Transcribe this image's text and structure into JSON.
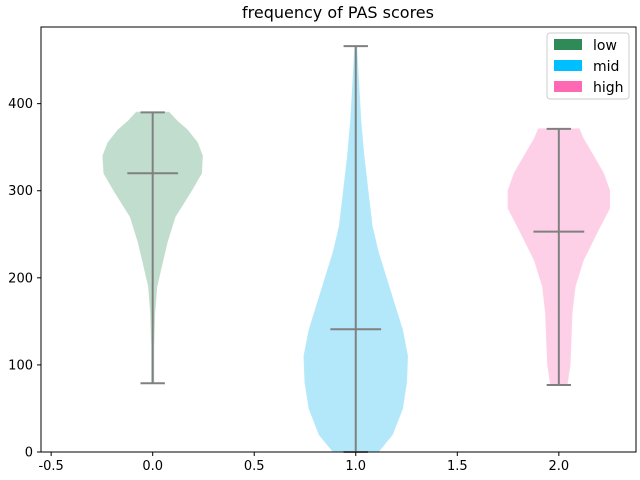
{
  "chart_data": {
    "type": "violin",
    "title": "frequency of PAS scores",
    "xlabel": "",
    "ylabel": "",
    "xlim": [
      -0.55,
      2.38
    ],
    "ylim": [
      0,
      488
    ],
    "x_ticks": [
      -0.5,
      0.0,
      0.5,
      1.0,
      1.5,
      2.0
    ],
    "x_tick_labels": [
      "-0.5",
      "0.0",
      "0.5",
      "1.0",
      "1.5",
      "2.0"
    ],
    "y_ticks": [
      0,
      100,
      200,
      300,
      400
    ],
    "y_tick_labels": [
      "0",
      "100",
      "200",
      "300",
      "400"
    ],
    "grid": false,
    "legend_position": "top-right",
    "series": [
      {
        "name": "low",
        "position": 0,
        "min": 79,
        "max": 390,
        "median": 320,
        "color": "#2e8b57",
        "fill": "#c0ddce",
        "density": [
          [
            79,
            0.005
          ],
          [
            120,
            0.005
          ],
          [
            160,
            0.01
          ],
          [
            190,
            0.02
          ],
          [
            210,
            0.04
          ],
          [
            240,
            0.07
          ],
          [
            270,
            0.11
          ],
          [
            300,
            0.19
          ],
          [
            320,
            0.24
          ],
          [
            340,
            0.245
          ],
          [
            355,
            0.22
          ],
          [
            370,
            0.17
          ],
          [
            380,
            0.12
          ],
          [
            390,
            0.08
          ]
        ]
      },
      {
        "name": "mid",
        "position": 1,
        "min": 0,
        "max": 466,
        "median": 141,
        "color": "#00bfff",
        "fill": "#b3e8fb",
        "density": [
          [
            0,
            0.11
          ],
          [
            20,
            0.18
          ],
          [
            50,
            0.23
          ],
          [
            80,
            0.25
          ],
          [
            110,
            0.255
          ],
          [
            140,
            0.23
          ],
          [
            170,
            0.19
          ],
          [
            200,
            0.15
          ],
          [
            230,
            0.11
          ],
          [
            260,
            0.08
          ],
          [
            300,
            0.06
          ],
          [
            340,
            0.04
          ],
          [
            380,
            0.025
          ],
          [
            420,
            0.015
          ],
          [
            450,
            0.008
          ],
          [
            466,
            0.004
          ]
        ]
      },
      {
        "name": "high",
        "position": 2,
        "min": 77,
        "max": 371,
        "median": 253,
        "color": "#ff69b4",
        "fill": "#fdd0e7",
        "density": [
          [
            77,
            0.04
          ],
          [
            100,
            0.055
          ],
          [
            130,
            0.06
          ],
          [
            160,
            0.065
          ],
          [
            190,
            0.08
          ],
          [
            220,
            0.12
          ],
          [
            253,
            0.19
          ],
          [
            280,
            0.25
          ],
          [
            300,
            0.25
          ],
          [
            320,
            0.22
          ],
          [
            340,
            0.17
          ],
          [
            360,
            0.12
          ],
          [
            371,
            0.1
          ]
        ]
      }
    ]
  }
}
